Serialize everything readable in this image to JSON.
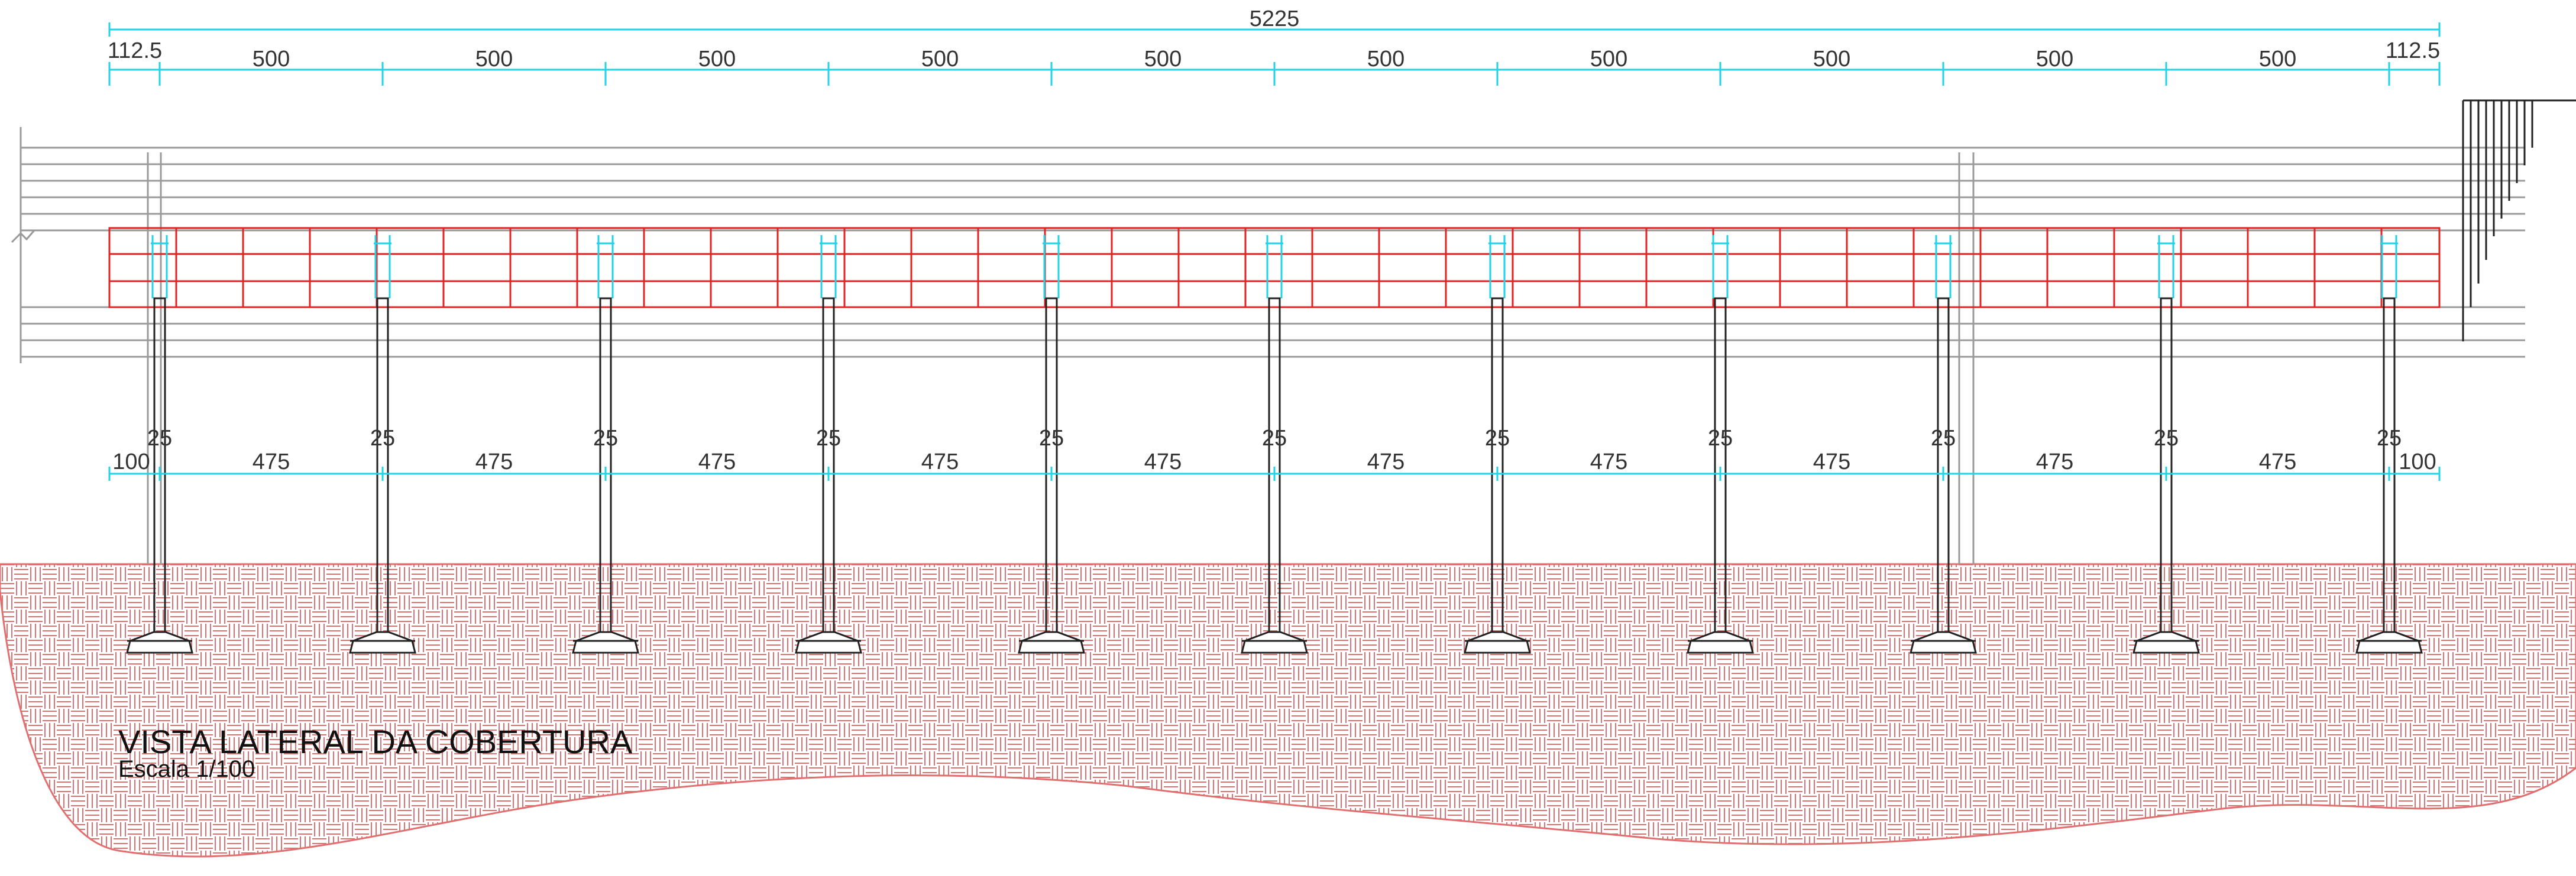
{
  "title": "VISTA LATERAL DA COBERTURA",
  "scale": "Escala 1/100",
  "top_dimensions": {
    "total": "5225",
    "end_left": "112.5",
    "end_right": "112.5",
    "spans": [
      "500",
      "500",
      "500",
      "500",
      "500",
      "500",
      "500",
      "500",
      "500",
      "500"
    ]
  },
  "bottom_dimensions": {
    "end_left": "100",
    "end_right": "100",
    "spans": [
      "475",
      "475",
      "475",
      "475",
      "475",
      "475",
      "475",
      "475",
      "475",
      "475"
    ],
    "column_widths": [
      "25",
      "25",
      "25",
      "25",
      "25",
      "25",
      "25",
      "25",
      "25",
      "25",
      "25"
    ]
  },
  "colors": {
    "dimension": "#22d3e6",
    "truss": "#e02424",
    "hatch": "#e07070",
    "structure": "#222222",
    "background_lines": "#9a9a9a"
  }
}
